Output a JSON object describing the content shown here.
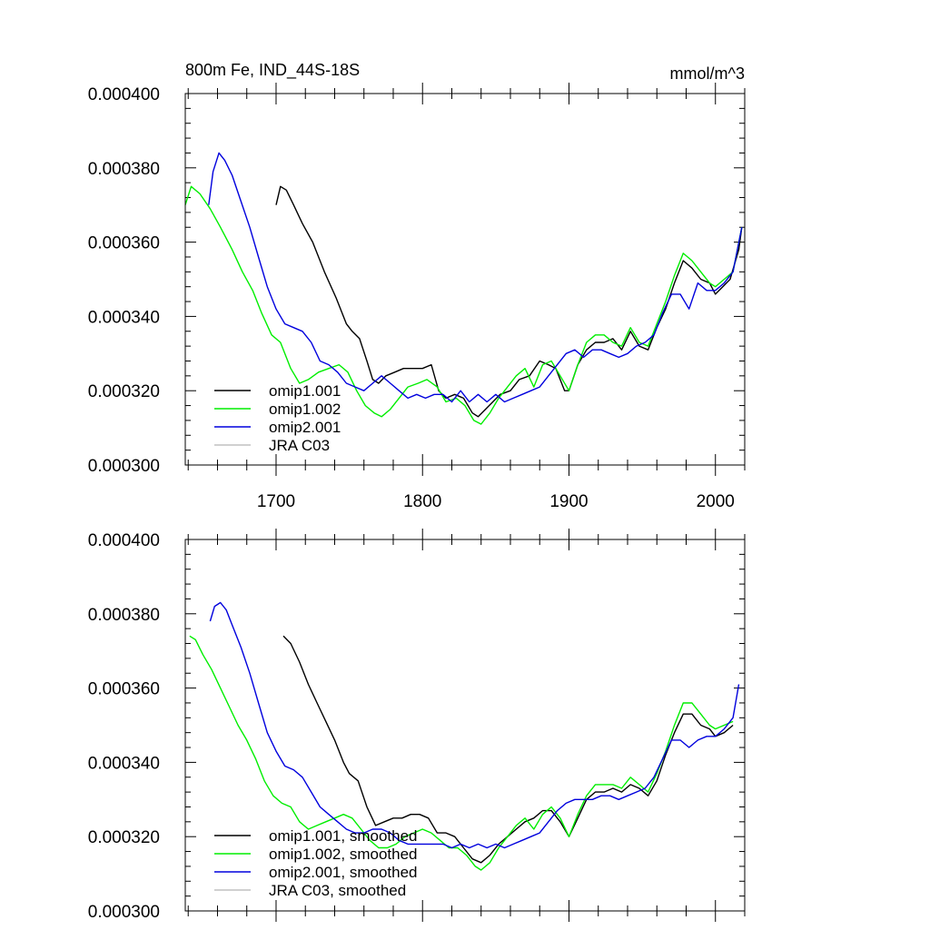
{
  "header": {
    "title": "800m Fe, IND_44S-18S",
    "units": "mmol/m^3"
  },
  "colors": {
    "omip1_001": "#000000",
    "omip1_002": "#00ee00",
    "omip2_001": "#0000dd",
    "jra_c03": "#c0c0c0"
  },
  "chart_data": [
    {
      "type": "line",
      "title": "800m Fe, IND_44S-18S",
      "subtitle": "mmol/m^3",
      "xlim": [
        1638,
        2020
      ],
      "ylim": [
        0.0003,
        0.0004
      ],
      "yticks": [
        "0.000300",
        "0.000320",
        "0.000340",
        "0.000360",
        "0.000380",
        "0.000400"
      ],
      "xticks": [
        "1700",
        "1800",
        "1900",
        "2000"
      ],
      "legend": "bottom-left",
      "grid": false,
      "series": [
        {
          "name": "omip1.001",
          "color_key": "omip1_001",
          "x": [
            1700,
            1703,
            1707,
            1712,
            1718,
            1725,
            1733,
            1741,
            1748,
            1752,
            1757,
            1762,
            1766,
            1770,
            1775,
            1781,
            1787,
            1793,
            1800,
            1806,
            1811,
            1816,
            1822,
            1828,
            1834,
            1838,
            1843,
            1848,
            1853,
            1860,
            1866,
            1873,
            1880,
            1886,
            1891,
            1897,
            1900,
            1906,
            1912,
            1918,
            1924,
            1930,
            1936,
            1942,
            1948,
            1954,
            1960,
            1966,
            1972,
            1978,
            1984,
            1990,
            1996,
            2000,
            2005,
            2010,
            2016,
            2018
          ],
          "y": [
            0.00037,
            0.000375,
            0.000374,
            0.00037,
            0.000365,
            0.00036,
            0.000352,
            0.000345,
            0.000338,
            0.000336,
            0.000334,
            0.000328,
            0.000323,
            0.000322,
            0.000324,
            0.000325,
            0.000326,
            0.000326,
            0.000326,
            0.000327,
            0.00032,
            0.000318,
            0.000319,
            0.000318,
            0.000314,
            0.000313,
            0.000315,
            0.000317,
            0.000319,
            0.00032,
            0.000323,
            0.000324,
            0.000328,
            0.000327,
            0.000326,
            0.00032,
            0.00032,
            0.000327,
            0.000331,
            0.000333,
            0.000333,
            0.000334,
            0.000331,
            0.000336,
            0.000332,
            0.000331,
            0.000337,
            0.000342,
            0.000349,
            0.000355,
            0.000353,
            0.00035,
            0.000349,
            0.000346,
            0.000348,
            0.00035,
            0.000358,
            0.000364
          ]
        },
        {
          "name": "omip1.002",
          "color_key": "omip1_002",
          "x": [
            1638,
            1642,
            1648,
            1655,
            1662,
            1670,
            1677,
            1684,
            1690,
            1697,
            1703,
            1710,
            1716,
            1722,
            1729,
            1736,
            1743,
            1749,
            1755,
            1761,
            1767,
            1772,
            1778,
            1784,
            1790,
            1797,
            1803,
            1810,
            1816,
            1823,
            1829,
            1835,
            1840,
            1846,
            1852,
            1858,
            1864,
            1870,
            1876,
            1882,
            1888,
            1894,
            1900,
            1906,
            1912,
            1918,
            1924,
            1930,
            1936,
            1942,
            1948,
            1954,
            1960,
            1966,
            1972,
            1978,
            1984,
            1990,
            1996,
            2000,
            2006,
            2012,
            2018
          ],
          "y": [
            0.00037,
            0.000375,
            0.000373,
            0.000369,
            0.000364,
            0.000358,
            0.000352,
            0.000347,
            0.000341,
            0.000335,
            0.000333,
            0.000326,
            0.000322,
            0.000323,
            0.000325,
            0.000326,
            0.000327,
            0.000325,
            0.00032,
            0.000316,
            0.000314,
            0.000313,
            0.000315,
            0.000318,
            0.000321,
            0.000322,
            0.000323,
            0.000321,
            0.000317,
            0.000318,
            0.000316,
            0.000312,
            0.000311,
            0.000314,
            0.000318,
            0.000321,
            0.000324,
            0.000326,
            0.000321,
            0.000327,
            0.000328,
            0.000324,
            0.00032,
            0.000327,
            0.000333,
            0.000335,
            0.000335,
            0.000333,
            0.000332,
            0.000337,
            0.000333,
            0.000332,
            0.000338,
            0.000344,
            0.000351,
            0.000357,
            0.000355,
            0.000352,
            0.000349,
            0.000348,
            0.00035,
            0.000352,
            0.000364
          ]
        },
        {
          "name": "omip2.001",
          "color_key": "omip2_001",
          "x": [
            1654,
            1657,
            1661,
            1665,
            1670,
            1676,
            1682,
            1688,
            1694,
            1700,
            1706,
            1712,
            1718,
            1724,
            1730,
            1736,
            1742,
            1748,
            1754,
            1760,
            1766,
            1772,
            1778,
            1784,
            1790,
            1796,
            1802,
            1808,
            1814,
            1820,
            1826,
            1832,
            1838,
            1844,
            1850,
            1856,
            1862,
            1868,
            1874,
            1880,
            1886,
            1892,
            1898,
            1904,
            1910,
            1916,
            1922,
            1928,
            1934,
            1940,
            1946,
            1952,
            1958,
            1964,
            1970,
            1976,
            1982,
            1988,
            1994,
            2000,
            2006,
            2012,
            2018
          ],
          "y": [
            0.00037,
            0.000379,
            0.000384,
            0.000382,
            0.000378,
            0.000371,
            0.000364,
            0.000356,
            0.000348,
            0.000342,
            0.000338,
            0.000337,
            0.000336,
            0.000333,
            0.000328,
            0.000327,
            0.000325,
            0.000322,
            0.000321,
            0.00032,
            0.000322,
            0.000324,
            0.000322,
            0.00032,
            0.000318,
            0.000319,
            0.000318,
            0.000319,
            0.000319,
            0.000317,
            0.00032,
            0.000317,
            0.000319,
            0.000317,
            0.000319,
            0.000317,
            0.000318,
            0.000319,
            0.00032,
            0.000321,
            0.000324,
            0.000327,
            0.00033,
            0.000331,
            0.000329,
            0.000331,
            0.000331,
            0.00033,
            0.000329,
            0.00033,
            0.000332,
            0.000333,
            0.000335,
            0.000341,
            0.000346,
            0.000346,
            0.000342,
            0.000349,
            0.000347,
            0.000347,
            0.000349,
            0.000352,
            0.000364
          ]
        }
      ],
      "legend_entries": [
        {
          "label": "omip1.001",
          "color_key": "omip1_001"
        },
        {
          "label": "omip1.002",
          "color_key": "omip1_002"
        },
        {
          "label": "omip2.001",
          "color_key": "omip2_001"
        },
        {
          "label": "JRA C03",
          "color_key": "jra_c03"
        }
      ]
    },
    {
      "type": "line",
      "xlim": [
        1638,
        2020
      ],
      "ylim": [
        0.0003,
        0.0004
      ],
      "yticks": [
        "0.000300",
        "0.000320",
        "0.000340",
        "0.000360",
        "0.000380",
        "0.000400"
      ],
      "legend": "bottom-left",
      "grid": false,
      "series": [
        {
          "name": "omip1.001, smoothed",
          "color_key": "omip1_001",
          "x": [
            1705,
            1710,
            1716,
            1722,
            1728,
            1734,
            1740,
            1746,
            1750,
            1756,
            1762,
            1768,
            1774,
            1780,
            1786,
            1792,
            1798,
            1804,
            1810,
            1816,
            1822,
            1828,
            1834,
            1840,
            1846,
            1852,
            1858,
            1864,
            1870,
            1876,
            1882,
            1888,
            1894,
            1900,
            1906,
            1912,
            1918,
            1924,
            1930,
            1936,
            1942,
            1948,
            1954,
            1960,
            1966,
            1972,
            1978,
            1984,
            1990,
            1996,
            2000,
            2006,
            2012
          ],
          "y": [
            0.000374,
            0.000372,
            0.000367,
            0.000361,
            0.000356,
            0.000351,
            0.000346,
            0.00034,
            0.000337,
            0.000335,
            0.000328,
            0.000323,
            0.000324,
            0.000325,
            0.000325,
            0.000326,
            0.000326,
            0.000325,
            0.000321,
            0.000321,
            0.00032,
            0.000317,
            0.000314,
            0.000313,
            0.000315,
            0.000318,
            0.00032,
            0.000322,
            0.000324,
            0.000325,
            0.000327,
            0.000327,
            0.000324,
            0.00032,
            0.000325,
            0.00033,
            0.000332,
            0.000332,
            0.000333,
            0.000332,
            0.000334,
            0.000333,
            0.000331,
            0.000335,
            0.000342,
            0.000348,
            0.000353,
            0.000353,
            0.00035,
            0.000349,
            0.000347,
            0.000348,
            0.00035
          ]
        },
        {
          "name": "omip1.002, smoothed",
          "color_key": "omip1_002",
          "x": [
            1641,
            1645,
            1650,
            1656,
            1662,
            1668,
            1674,
            1680,
            1686,
            1692,
            1698,
            1704,
            1710,
            1716,
            1722,
            1728,
            1734,
            1740,
            1746,
            1752,
            1758,
            1764,
            1770,
            1776,
            1782,
            1788,
            1794,
            1800,
            1806,
            1812,
            1818,
            1824,
            1830,
            1836,
            1840,
            1846,
            1852,
            1858,
            1864,
            1870,
            1876,
            1882,
            1888,
            1894,
            1900,
            1906,
            1912,
            1918,
            1924,
            1930,
            1936,
            1942,
            1948,
            1954,
            1960,
            1966,
            1972,
            1978,
            1984,
            1990,
            1996,
            2000,
            2006,
            2012
          ],
          "y": [
            0.000374,
            0.000373,
            0.000369,
            0.000365,
            0.00036,
            0.000355,
            0.00035,
            0.000346,
            0.000341,
            0.000335,
            0.000331,
            0.000329,
            0.000328,
            0.000324,
            0.000322,
            0.000323,
            0.000324,
            0.000325,
            0.000326,
            0.000325,
            0.000322,
            0.000319,
            0.000317,
            0.000317,
            0.000318,
            0.00032,
            0.000321,
            0.000322,
            0.000321,
            0.000319,
            0.000317,
            0.000317,
            0.000315,
            0.000312,
            0.000311,
            0.000313,
            0.000317,
            0.00032,
            0.000323,
            0.000325,
            0.000322,
            0.000326,
            0.000328,
            0.000325,
            0.00032,
            0.000326,
            0.000331,
            0.000334,
            0.000334,
            0.000334,
            0.000333,
            0.000336,
            0.000334,
            0.000332,
            0.000337,
            0.000343,
            0.00035,
            0.000356,
            0.000356,
            0.000353,
            0.00035,
            0.000349,
            0.00035,
            0.000351
          ]
        },
        {
          "name": "omip2.001, smoothed",
          "color_key": "omip2_001",
          "x": [
            1655,
            1658,
            1662,
            1666,
            1670,
            1676,
            1682,
            1688,
            1694,
            1700,
            1706,
            1712,
            1718,
            1724,
            1730,
            1736,
            1742,
            1748,
            1754,
            1760,
            1766,
            1772,
            1778,
            1784,
            1790,
            1796,
            1802,
            1808,
            1814,
            1820,
            1826,
            1832,
            1838,
            1844,
            1850,
            1856,
            1862,
            1868,
            1874,
            1880,
            1886,
            1892,
            1898,
            1904,
            1910,
            1916,
            1922,
            1928,
            1934,
            1940,
            1946,
            1952,
            1958,
            1964,
            1970,
            1976,
            1982,
            1988,
            1994,
            2000,
            2006,
            2012,
            2016
          ],
          "y": [
            0.000378,
            0.000382,
            0.000383,
            0.000381,
            0.000377,
            0.000371,
            0.000364,
            0.000356,
            0.000348,
            0.000343,
            0.000339,
            0.000338,
            0.000336,
            0.000332,
            0.000328,
            0.000326,
            0.000324,
            0.000322,
            0.000321,
            0.000321,
            0.000322,
            0.000322,
            0.000321,
            0.000319,
            0.000318,
            0.000318,
            0.000318,
            0.000318,
            0.000318,
            0.000317,
            0.000318,
            0.000317,
            0.000318,
            0.000317,
            0.000318,
            0.000317,
            0.000318,
            0.000319,
            0.00032,
            0.000321,
            0.000324,
            0.000327,
            0.000329,
            0.00033,
            0.00033,
            0.00033,
            0.000331,
            0.000331,
            0.00033,
            0.000331,
            0.000332,
            0.000333,
            0.000336,
            0.000341,
            0.000346,
            0.000346,
            0.000344,
            0.000346,
            0.000347,
            0.000347,
            0.000349,
            0.000352,
            0.000361
          ]
        }
      ],
      "legend_entries": [
        {
          "label": "omip1.001, smoothed",
          "color_key": "omip1_001"
        },
        {
          "label": "omip1.002, smoothed",
          "color_key": "omip1_002"
        },
        {
          "label": "omip2.001, smoothed",
          "color_key": "omip2_001"
        },
        {
          "label": "JRA C03, smoothed",
          "color_key": "jra_c03"
        }
      ]
    }
  ]
}
